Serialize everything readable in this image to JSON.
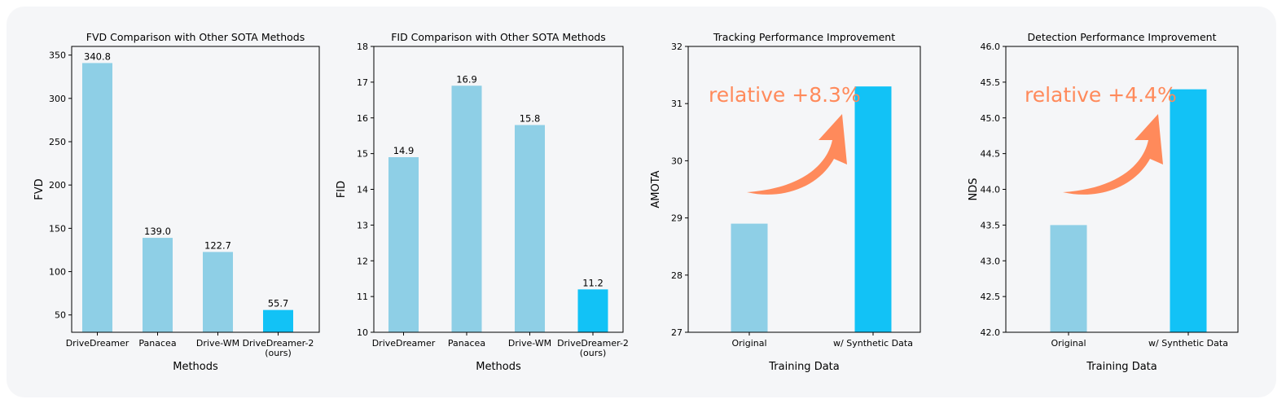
{
  "colors": {
    "bar": "#8ECFE6",
    "bar_highlight": "#12C2F6",
    "arrow": "#FF8A5B",
    "panel_bg": "#f5f6f8"
  },
  "chart_data": [
    {
      "type": "bar",
      "title": "FVD Comparison with Other SOTA Methods",
      "xlabel": "Methods",
      "ylabel": "FVD",
      "categories": [
        "DriveDreamer",
        "Panacea",
        "Drive-WM",
        "DriveDreamer-2\n(ours)"
      ],
      "values": [
        340.8,
        139.0,
        122.7,
        55.7
      ],
      "value_labels": [
        "340.8",
        "139.0",
        "122.7",
        "55.7"
      ],
      "highlight_index": 3,
      "ylim": [
        30,
        360
      ],
      "yticks": [
        50,
        100,
        150,
        200,
        250,
        300,
        350
      ],
      "grid": false
    },
    {
      "type": "bar",
      "title": "FID Comparison with Other SOTA Methods",
      "xlabel": "Methods",
      "ylabel": "FID",
      "categories": [
        "DriveDreamer",
        "Panacea",
        "Drive-WM",
        "DriveDreamer-2\n(ours)"
      ],
      "values": [
        14.9,
        16.9,
        15.8,
        11.2
      ],
      "value_labels": [
        "14.9",
        "16.9",
        "15.8",
        "11.2"
      ],
      "highlight_index": 3,
      "ylim": [
        10,
        18
      ],
      "yticks": [
        10,
        11,
        12,
        13,
        14,
        15,
        16,
        17,
        18
      ],
      "grid": false
    },
    {
      "type": "bar",
      "title": "Tracking Performance Improvement",
      "xlabel": "Training Data",
      "ylabel": "AMOTA",
      "categories": [
        "Original",
        "w/ Synthetic Data"
      ],
      "values": [
        28.9,
        31.3
      ],
      "highlight_index": 1,
      "ylim": [
        27,
        32
      ],
      "yticks": [
        27,
        28,
        29,
        30,
        31,
        32
      ],
      "annotation": "relative +8.3%",
      "grid": false
    },
    {
      "type": "bar",
      "title": "Detection Performance Improvement",
      "xlabel": "Training Data",
      "ylabel": "NDS",
      "categories": [
        "Original",
        "w/ Synthetic Data"
      ],
      "values": [
        43.5,
        45.4
      ],
      "highlight_index": 1,
      "ylim": [
        42.0,
        46.0
      ],
      "yticks": [
        "42.0",
        "42.5",
        "43.0",
        "43.5",
        "44.0",
        "44.5",
        "45.0",
        "45.5",
        "46.0"
      ],
      "annotation": "relative +4.4%",
      "grid": false
    }
  ]
}
